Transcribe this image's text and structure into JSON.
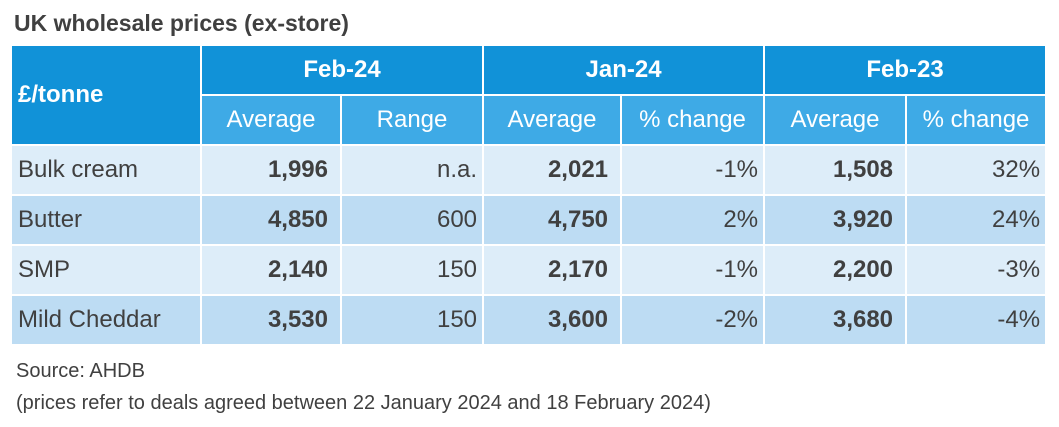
{
  "title": "UK wholesale prices (ex-store)",
  "table": {
    "corner": "£/tonne",
    "groups": [
      "Feb-24",
      "Jan-24",
      "Feb-23"
    ],
    "subheaders": [
      "Average",
      "Range",
      "Average",
      "% change",
      "Average",
      "% change"
    ],
    "rows": [
      [
        "Bulk cream",
        "1,996",
        "n.a.",
        "2,021",
        "-1%",
        "1,508",
        "32%"
      ],
      [
        "Butter",
        "4,850",
        "600",
        "4,750",
        "2%",
        "3,920",
        "24%"
      ],
      [
        "SMP",
        "2,140",
        "150",
        "2,170",
        "-1%",
        "2,200",
        "-3%"
      ],
      [
        "Mild Cheddar",
        "3,530",
        "150",
        "3,600",
        "-2%",
        "3,680",
        "-4%"
      ]
    ]
  },
  "notes": [
    "Source: AHDB",
    "(prices refer to deals agreed between 22 January 2024 and 18 February 2024)"
  ]
}
